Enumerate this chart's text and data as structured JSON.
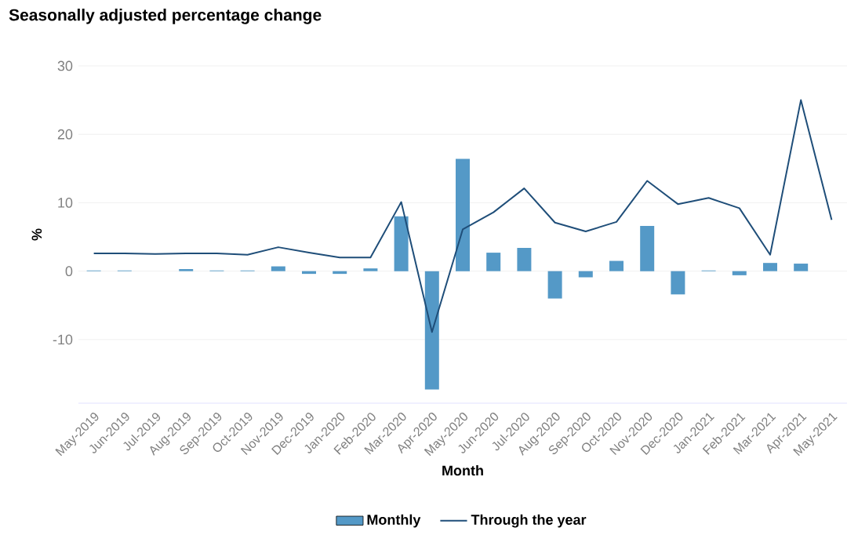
{
  "chart_data": {
    "type": "bar",
    "title": "Seasonally adjusted percentage change",
    "xlabel": "Month",
    "ylabel": "%",
    "categories": [
      "May-2019",
      "Jun-2019",
      "Jul-2019",
      "Aug-2019",
      "Sep-2019",
      "Oct-2019",
      "Nov-2019",
      "Dec-2019",
      "Jan-2020",
      "Feb-2020",
      "Mar-2020",
      "Apr-2020",
      "May-2020",
      "Jun-2020",
      "Jul-2020",
      "Aug-2020",
      "Sep-2020",
      "Oct-2020",
      "Nov-2020",
      "Dec-2020",
      "Jan-2021",
      "Feb-2021",
      "Mar-2021",
      "Apr-2021",
      "May-2021"
    ],
    "series": [
      {
        "name": "Monthly",
        "color": "#5499c7",
        "values": [
          0.1,
          0.1,
          0,
          0.3,
          0.1,
          0.1,
          0.7,
          -0.4,
          -0.4,
          0.4,
          8.0,
          -17.3,
          16.4,
          2.7,
          3.4,
          -4.0,
          -0.9,
          1.5,
          6.6,
          -3.4,
          0.1,
          -0.6,
          1.2,
          1.1,
          null
        ]
      },
      {
        "name": "Through the year",
        "type": "line",
        "color": "#1f4e79",
        "values": [
          2.6,
          2.6,
          2.5,
          2.6,
          2.6,
          2.4,
          3.5,
          2.7,
          2.0,
          2.0,
          10.1,
          -8.9,
          6.1,
          8.6,
          12.1,
          7.1,
          5.8,
          7.2,
          13.2,
          9.8,
          10.7,
          9.2,
          2.4,
          25.0,
          7.5
        ]
      }
    ],
    "ylim": [
      -19.3,
      30
    ],
    "yticks": [
      -10,
      0,
      10,
      20,
      30
    ],
    "grid": "y",
    "legend": "bottom"
  }
}
